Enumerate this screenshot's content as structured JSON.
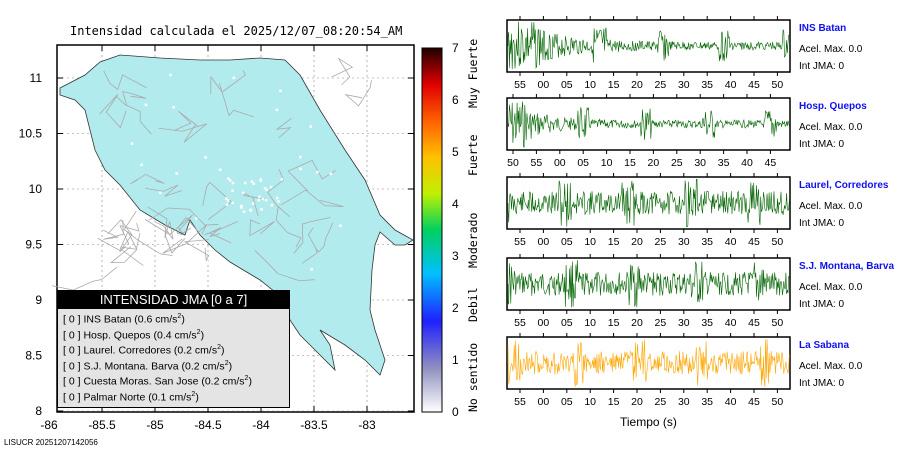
{
  "title": "Intensidad calculada el 2025/12/07_08:20:54_AM",
  "footer": "LISUCR 20251207142056",
  "chart_data": [
    {
      "type": "map",
      "title": "Intensidad calculada el 2025/12/07_08:20:54_AM",
      "x_ticks": [
        "-86",
        "-85.5",
        "-85",
        "-84.5",
        "-84",
        "-83.5",
        "-83"
      ],
      "y_ticks": [
        "11",
        "10.5",
        "10",
        "9.5",
        "9",
        "8.5",
        "8"
      ],
      "xlim": [
        -86,
        -82.6
      ],
      "ylim": [
        8,
        11.3
      ],
      "colorbar": {
        "ticks": [
          "0",
          "1",
          "2",
          "3",
          "4",
          "5",
          "6",
          "7"
        ],
        "labels": [
          "No sentido",
          "Debil",
          "Moderado",
          "Fuerte",
          "Muy Fuerte"
        ]
      },
      "legend": {
        "title": "INTENSIDAD JMA [0 a 7]",
        "items": [
          {
            "int": "[ 0 ]",
            "name": "INS Batan",
            "acc": "(0.6 cm/s",
            "sup": "2",
            ")": ")"
          },
          {
            "int": "[ 0 ]",
            "name": "Hosp. Quepos",
            "acc": "(0.4 cm/s",
            "sup": "2"
          },
          {
            "int": "[ 0 ]",
            "name": "Laurel. Corredores",
            "acc": "(0.2 cm/s",
            "sup": "2"
          },
          {
            "int": "[ 0 ]",
            "name": "S.J. Montana. Barva",
            "acc": "(0.2 cm/s",
            "sup": "2"
          },
          {
            "int": "[ 0 ]",
            "name": "Cuesta Moras. San Jose",
            "acc": "(0.2 cm/s",
            "sup": "2"
          },
          {
            "int": "[ 0 ]",
            "name": "Palmar Norte",
            "acc": "(0.1 cm/s",
            "sup": "2"
          }
        ]
      }
    },
    {
      "type": "line",
      "xlabel": "Tiempo (s)",
      "traces": [
        {
          "name": "INS Batan",
          "acel": "Acel. Max. 0.0",
          "int": "Int JMA: 0",
          "color": "#006400",
          "ticks": [
            "55",
            "00",
            "05",
            "10",
            "15",
            "20",
            "25",
            "30",
            "35",
            "40",
            "45",
            "50"
          ],
          "seed": 3
        },
        {
          "name": "Hosp. Quepos",
          "acel": "Acel. Max. 0.0",
          "int": "Int JMA: 0",
          "color": "#006400",
          "ticks": [
            "50",
            "55",
            "00",
            "05",
            "10",
            "15",
            "20",
            "25",
            "30",
            "35",
            "40",
            "45"
          ],
          "seed": 7
        },
        {
          "name": "Laurel, Corredores",
          "acel": "Acel. Max. 0.0",
          "int": "Int JMA: 0",
          "color": "#006400",
          "ticks": [
            "55",
            "00",
            "05",
            "10",
            "15",
            "20",
            "25",
            "30",
            "35",
            "40",
            "45",
            "50"
          ],
          "seed": 11
        },
        {
          "name": "S.J. Montana, Barva",
          "acel": "Acel. Max. 0.0",
          "int": "Int JMA: 0",
          "color": "#006400",
          "ticks": [
            "55",
            "00",
            "05",
            "10",
            "15",
            "20",
            "25",
            "30",
            "35",
            "40",
            "45",
            "50"
          ],
          "seed": 17
        },
        {
          "name": "La Sabana",
          "acel": "Acel. Max. 0.0",
          "int": "Int JMA: 0",
          "color": "#ffa500",
          "ticks": [
            "55",
            "00",
            "05",
            "10",
            "15",
            "20",
            "25",
            "30",
            "35",
            "40",
            "45",
            "50"
          ],
          "seed": 23
        }
      ]
    }
  ]
}
